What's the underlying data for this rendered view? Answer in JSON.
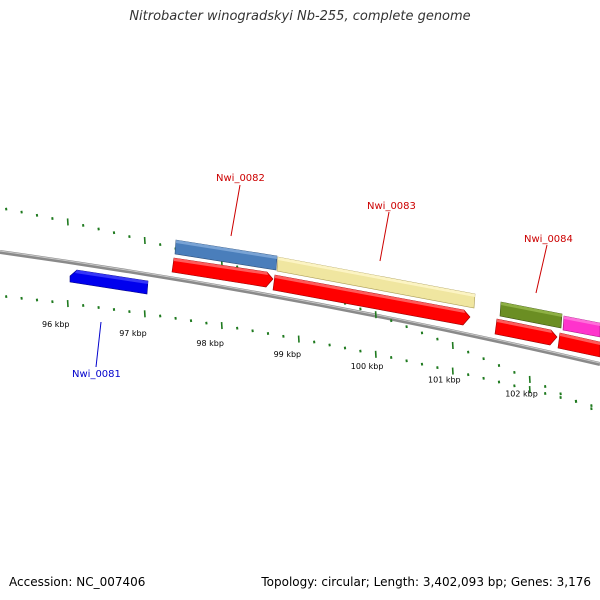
{
  "title": "Nitrobacter winogradskyi Nb-255, complete genome",
  "footer": {
    "accession": "Accession: NC_007406",
    "summary": "Topology: circular; Length: 3,402,093 bp; Genes: 3,176"
  },
  "scale": {
    "unit": "kbp",
    "labels": [
      {
        "kbp": 96,
        "text": "96 kbp"
      },
      {
        "kbp": 97,
        "text": "97 kbp"
      },
      {
        "kbp": 98,
        "text": "98 kbp"
      },
      {
        "kbp": 99,
        "text": "99 kbp"
      },
      {
        "kbp": 100,
        "text": "100 kbp"
      },
      {
        "kbp": 101,
        "text": "101 kbp"
      },
      {
        "kbp": 102,
        "text": "102 kbp"
      }
    ]
  },
  "genes": [
    {
      "id": "Nwi_0081",
      "label": "Nwi_0081",
      "strand": "-",
      "color": "#0000ee",
      "label_color": "#0000cc"
    },
    {
      "id": "Nwi_0082",
      "label": "Nwi_0082",
      "strand": "+",
      "color": "#4a7ebb",
      "label_color": "#cc0000"
    },
    {
      "id": "Nwi_0083",
      "label": "Nwi_0083",
      "strand": "+",
      "color": "#f0e6a0",
      "label_color": "#cc0000"
    },
    {
      "id": "Nwi_0084",
      "label": "Nwi_0084",
      "strand": "+",
      "color": "#6b8e23",
      "label_color": "#cc0000"
    },
    {
      "id": "Nwi_0085",
      "label": "",
      "strand": "+",
      "color": "#ff33cc",
      "label_color": "#cc0000"
    }
  ],
  "colors": {
    "backbone": "#808080",
    "cds": "#ff0000",
    "ticks": "#1f7a1f"
  }
}
